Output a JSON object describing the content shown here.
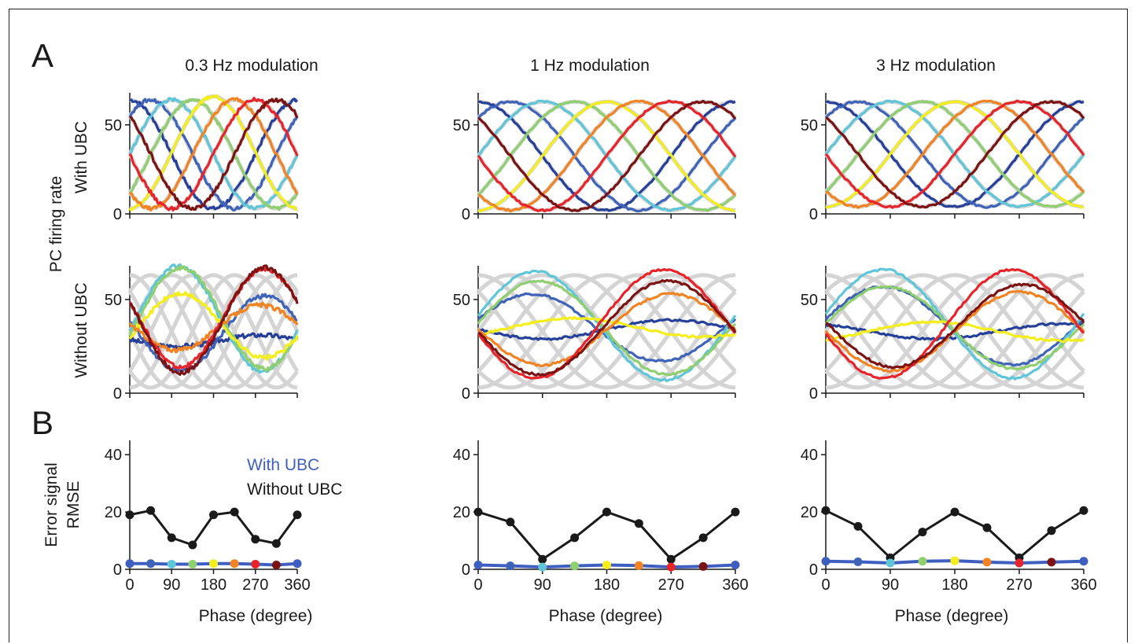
{
  "figure": {
    "panel_labels": [
      "A",
      "B"
    ],
    "shared_ylabels": {
      "panel_a_outer": "PC firing rate",
      "row_with": "With UBC",
      "row_without": "Without UBC",
      "row_error_line1": "Error signal",
      "row_error_line2": "RMSE"
    },
    "column_titles": [
      "0.3 Hz modulation",
      "1 Hz modulation",
      "3 Hz modulation"
    ],
    "xlabel": "Phase (degree)",
    "legend": {
      "with_ubc": "With UBC",
      "without_ubc": "Without UBC",
      "placement": "inside top of first error panel"
    },
    "colors": {
      "with_ubc_line": "#3f5fc0",
      "without_ubc_line": "#1a1a1a",
      "template_grey": "#d4d4d4",
      "phase_palette": [
        "#26409a",
        "#3f63b8",
        "#5ec6d8",
        "#8fcf6f",
        "#f4ee1c",
        "#f28322",
        "#e8242b",
        "#7c1313"
      ]
    }
  },
  "chart_data": [
    {
      "type": "line",
      "panel": "A",
      "row": "With UBC",
      "column": "0.3 Hz modulation",
      "x_unit": "degree",
      "xlim": [
        0,
        360
      ],
      "ylim": [
        0,
        68
      ],
      "yticks": [
        0,
        50
      ],
      "description_of_series": "8 PC traces with preferred phases every 45 deg; grey = target sinusoids",
      "series": [
        {
          "peak_phase": 0,
          "values": {
            "min": 3,
            "max": 64
          }
        },
        {
          "peak_phase": 45,
          "values": {
            "min": 3,
            "max": 64
          }
        },
        {
          "peak_phase": 90,
          "values": {
            "min": 3,
            "max": 64
          }
        },
        {
          "peak_phase": 135,
          "values": {
            "min": 3,
            "max": 64
          }
        },
        {
          "peak_phase": 180,
          "values": {
            "min": 3,
            "max": 66
          }
        },
        {
          "peak_phase": 225,
          "values": {
            "min": 3,
            "max": 64
          }
        },
        {
          "peak_phase": 270,
          "values": {
            "min": 3,
            "max": 64
          }
        },
        {
          "peak_phase": 315,
          "values": {
            "min": 3,
            "max": 64
          }
        }
      ]
    },
    {
      "type": "line",
      "panel": "A",
      "row": "With UBC",
      "column": "1 Hz modulation",
      "xlim": [
        0,
        360
      ],
      "ylim": [
        0,
        68
      ],
      "yticks": [
        0,
        50
      ],
      "series": [
        {
          "peak_phase": 0,
          "values": {
            "min": 2,
            "max": 63
          }
        },
        {
          "peak_phase": 45,
          "values": {
            "min": 2,
            "max": 63
          }
        },
        {
          "peak_phase": 90,
          "values": {
            "min": 2,
            "max": 63
          }
        },
        {
          "peak_phase": 135,
          "values": {
            "min": 2,
            "max": 63
          }
        },
        {
          "peak_phase": 180,
          "values": {
            "min": 2,
            "max": 63
          }
        },
        {
          "peak_phase": 225,
          "values": {
            "min": 2,
            "max": 63
          }
        },
        {
          "peak_phase": 270,
          "values": {
            "min": 2,
            "max": 63
          }
        },
        {
          "peak_phase": 315,
          "values": {
            "min": 2,
            "max": 63
          }
        }
      ]
    },
    {
      "type": "line",
      "panel": "A",
      "row": "With UBC",
      "column": "3 Hz modulation",
      "xlim": [
        0,
        360
      ],
      "ylim": [
        0,
        68
      ],
      "yticks": [
        0,
        50
      ],
      "series": [
        {
          "peak_phase": 0,
          "values": {
            "min": 4,
            "max": 63
          }
        },
        {
          "peak_phase": 45,
          "values": {
            "min": 4,
            "max": 63
          }
        },
        {
          "peak_phase": 90,
          "values": {
            "min": 4,
            "max": 63
          }
        },
        {
          "peak_phase": 135,
          "values": {
            "min": 4,
            "max": 63
          }
        },
        {
          "peak_phase": 180,
          "values": {
            "min": 4,
            "max": 63
          }
        },
        {
          "peak_phase": 225,
          "values": {
            "min": 4,
            "max": 63
          }
        },
        {
          "peak_phase": 270,
          "values": {
            "min": 4,
            "max": 63
          }
        },
        {
          "peak_phase": 315,
          "values": {
            "min": 4,
            "max": 63
          }
        }
      ]
    },
    {
      "type": "line",
      "panel": "A",
      "row": "Without UBC",
      "column": "0.3 Hz modulation",
      "xlim": [
        0,
        360
      ],
      "ylim": [
        0,
        68
      ],
      "yticks": [
        0,
        50
      ],
      "series": [
        {
          "color_index": 0,
          "offset": 28,
          "amp": 3,
          "peak_phase": 280
        },
        {
          "color_index": 1,
          "offset": 32,
          "amp": 20,
          "peak_phase": 290
        },
        {
          "color_index": 2,
          "offset": 40,
          "amp": 28,
          "peak_phase": 105
        },
        {
          "color_index": 3,
          "offset": 40,
          "amp": 27,
          "peak_phase": 110
        },
        {
          "color_index": 4,
          "offset": 36,
          "amp": 17,
          "peak_phase": 110
        },
        {
          "color_index": 5,
          "offset": 35,
          "amp": 12,
          "peak_phase": 280
        },
        {
          "color_index": 6,
          "offset": 40,
          "amp": 26,
          "peak_phase": 290
        },
        {
          "color_index": 7,
          "offset": 39,
          "amp": 28,
          "peak_phase": 290
        }
      ]
    },
    {
      "type": "line",
      "panel": "A",
      "row": "Without UBC",
      "column": "1 Hz modulation",
      "xlim": [
        0,
        360
      ],
      "ylim": [
        0,
        68
      ],
      "yticks": [
        0,
        50
      ],
      "series": [
        {
          "color_index": 0,
          "offset": 34,
          "amp": 5,
          "peak_phase": 270
        },
        {
          "color_index": 1,
          "offset": 35,
          "amp": 18,
          "peak_phase": 75
        },
        {
          "color_index": 2,
          "offset": 36,
          "amp": 29,
          "peak_phase": 80
        },
        {
          "color_index": 3,
          "offset": 35,
          "amp": 25,
          "peak_phase": 85
        },
        {
          "color_index": 4,
          "offset": 35,
          "amp": 5,
          "peak_phase": 135
        },
        {
          "color_index": 5,
          "offset": 34,
          "amp": 19,
          "peak_phase": 270
        },
        {
          "color_index": 6,
          "offset": 37,
          "amp": 29,
          "peak_phase": 260
        },
        {
          "color_index": 7,
          "offset": 35,
          "amp": 25,
          "peak_phase": 265
        }
      ]
    },
    {
      "type": "line",
      "panel": "A",
      "row": "Without UBC",
      "column": "3 Hz modulation",
      "xlim": [
        0,
        360
      ],
      "ylim": [
        0,
        68
      ],
      "yticks": [
        0,
        50
      ],
      "series": [
        {
          "color_index": 0,
          "offset": 33,
          "amp": 4,
          "peak_phase": 330
        },
        {
          "color_index": 1,
          "offset": 36,
          "amp": 21,
          "peak_phase": 80
        },
        {
          "color_index": 2,
          "offset": 37,
          "amp": 29,
          "peak_phase": 80
        },
        {
          "color_index": 3,
          "offset": 35,
          "amp": 22,
          "peak_phase": 85
        },
        {
          "color_index": 4,
          "offset": 33,
          "amp": 5,
          "peak_phase": 150
        },
        {
          "color_index": 5,
          "offset": 33,
          "amp": 21,
          "peak_phase": 270
        },
        {
          "color_index": 6,
          "offset": 37,
          "amp": 29,
          "peak_phase": 260
        },
        {
          "color_index": 7,
          "offset": 36,
          "amp": 22,
          "peak_phase": 275
        }
      ]
    },
    {
      "type": "line",
      "panel": "B",
      "column": "0.3 Hz modulation",
      "x": [
        0,
        45,
        90,
        135,
        180,
        225,
        270,
        315,
        360
      ],
      "xticks": [
        0,
        90,
        180,
        270,
        360
      ],
      "xlim": [
        0,
        360
      ],
      "ylim": [
        0,
        45
      ],
      "yticks": [
        0,
        20,
        40
      ],
      "series": [
        {
          "name": "With UBC",
          "values": [
            2,
            2,
            1.8,
            1.8,
            2,
            2,
            1.8,
            1.5,
            2
          ]
        },
        {
          "name": "Without UBC",
          "values": [
            19,
            20.5,
            11,
            8.5,
            19,
            20,
            10.5,
            9,
            19
          ]
        }
      ]
    },
    {
      "type": "line",
      "panel": "B",
      "column": "1 Hz modulation",
      "x": [
        0,
        45,
        90,
        135,
        180,
        225,
        270,
        315,
        360
      ],
      "xticks": [
        0,
        90,
        180,
        270,
        360
      ],
      "xlim": [
        0,
        360
      ],
      "ylim": [
        0,
        45
      ],
      "yticks": [
        0,
        20,
        40
      ],
      "series": [
        {
          "name": "With UBC",
          "values": [
            1.5,
            1.2,
            0.8,
            1.2,
            1.5,
            1.3,
            0.8,
            1,
            1.5
          ]
        },
        {
          "name": "Without UBC",
          "values": [
            20,
            16.5,
            3.5,
            11,
            20,
            16,
            3.5,
            11,
            20
          ]
        }
      ]
    },
    {
      "type": "line",
      "panel": "B",
      "column": "3 Hz modulation",
      "x": [
        0,
        45,
        90,
        135,
        180,
        225,
        270,
        315,
        360
      ],
      "xticks": [
        0,
        90,
        180,
        270,
        360
      ],
      "xlim": [
        0,
        360
      ],
      "ylim": [
        0,
        45
      ],
      "yticks": [
        0,
        20,
        40
      ],
      "series": [
        {
          "name": "With UBC",
          "values": [
            2.8,
            2.6,
            2.2,
            2.8,
            3,
            2.5,
            2.2,
            2.5,
            2.8
          ]
        },
        {
          "name": "Without UBC",
          "values": [
            20.5,
            15,
            4,
            13,
            20,
            14.5,
            4,
            13.5,
            20.5
          ]
        }
      ]
    }
  ]
}
